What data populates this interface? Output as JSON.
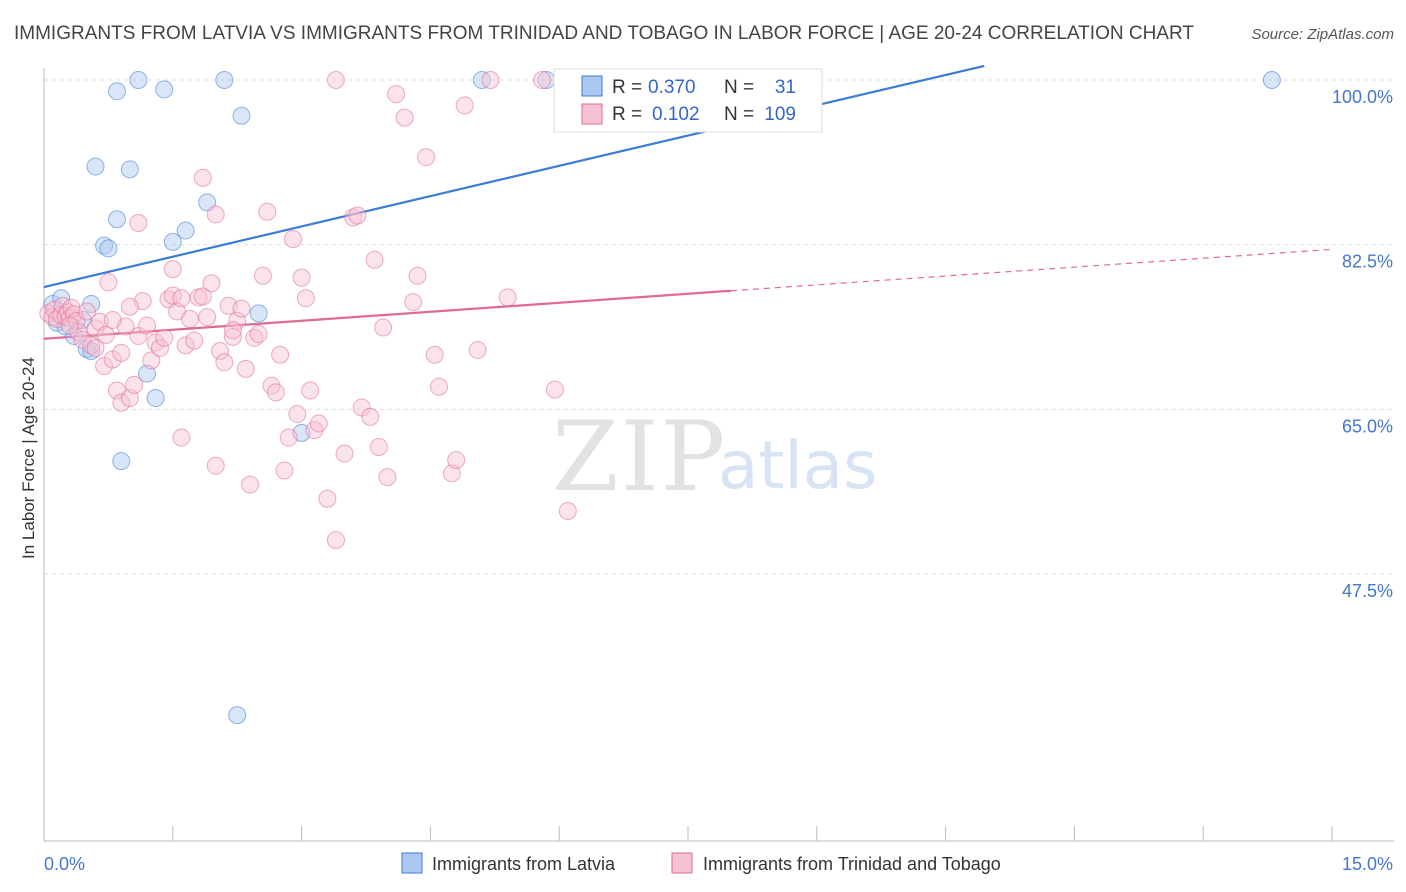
{
  "chart_data": {
    "type": "scatter",
    "title": "IMMIGRANTS FROM LATVIA VS IMMIGRANTS FROM TRINIDAD AND TOBAGO IN LABOR FORCE | AGE 20-24 CORRELATION CHART",
    "source": "Source: ZipAtlas.com",
    "xlabel": "",
    "ylabel": "In Labor Force | Age 20-24",
    "xlim": [
      0,
      15
    ],
    "ylim": [
      31.2,
      101.5
    ],
    "x_tick_labels": [
      "0.0%",
      "15.0%"
    ],
    "y_ticks": [
      {
        "value": 100.0,
        "label": "100.0%"
      },
      {
        "value": 82.5,
        "label": "82.5%"
      },
      {
        "value": 65.0,
        "label": "65.0%"
      },
      {
        "value": 47.5,
        "label": "47.5%"
      }
    ],
    "grid": true,
    "legend_position": "bottom",
    "watermark": {
      "zip": "ZIP",
      "atlas": "atlas"
    },
    "stats": [
      {
        "r_label": "R =",
        "r_value": "0.370",
        "n_label": "N =",
        "n_value": "31"
      },
      {
        "r_label": "R =",
        "r_value": "0.102",
        "n_label": "N =",
        "n_value": "109"
      }
    ],
    "series": [
      {
        "name": "Immigrants from Latvia",
        "color": "#3a7bd5",
        "fill": "#aac8f0",
        "trend": {
          "x0": 0,
          "y0": 78.0,
          "x1": 10.95,
          "y1": 101.5
        },
        "points": [
          [
            0.1,
            76.2
          ],
          [
            0.2,
            76.8
          ],
          [
            0.15,
            74.2
          ],
          [
            0.25,
            73.8
          ],
          [
            0.35,
            72.8
          ],
          [
            0.5,
            71.4
          ],
          [
            0.55,
            76.2
          ],
          [
            0.45,
            74.5
          ],
          [
            0.6,
            90.8
          ],
          [
            0.85,
            98.8
          ],
          [
            1.1,
            100.0
          ],
          [
            1.4,
            99.0
          ],
          [
            2.1,
            100.0
          ],
          [
            2.3,
            96.2
          ],
          [
            0.7,
            82.4
          ],
          [
            0.75,
            82.1
          ],
          [
            0.85,
            85.2
          ],
          [
            1.0,
            90.5
          ],
          [
            1.5,
            82.8
          ],
          [
            1.65,
            84.0
          ],
          [
            1.9,
            87.0
          ],
          [
            2.5,
            75.2
          ],
          [
            1.2,
            68.8
          ],
          [
            1.3,
            66.2
          ],
          [
            0.9,
            59.5
          ],
          [
            3.0,
            62.5
          ],
          [
            5.1,
            100.0
          ],
          [
            5.85,
            100.0
          ],
          [
            14.3,
            100.0
          ],
          [
            2.25,
            32.5
          ],
          [
            0.55,
            71.2
          ]
        ]
      },
      {
        "name": "Immigrants from Trinidad and Tobago",
        "color": "#e06a96",
        "fill": "#f6c1d3",
        "trend": {
          "x0": 0,
          "y0": 72.5,
          "x1": 8.0,
          "y1": 77.6
        },
        "trend_dashed": {
          "x0": 8.0,
          "y0": 77.6,
          "x1": 15.0,
          "y1": 82.0
        },
        "points": [
          [
            0.05,
            75.2
          ],
          [
            0.1,
            74.8
          ],
          [
            0.12,
            75.6
          ],
          [
            0.15,
            74.6
          ],
          [
            0.2,
            75.0
          ],
          [
            0.22,
            76.0
          ],
          [
            0.25,
            74.9
          ],
          [
            0.28,
            75.3
          ],
          [
            0.3,
            74.7
          ],
          [
            0.32,
            75.8
          ],
          [
            0.35,
            75.1
          ],
          [
            0.38,
            74.4
          ],
          [
            0.4,
            73.2
          ],
          [
            0.45,
            72.4
          ],
          [
            0.5,
            75.4
          ],
          [
            0.55,
            71.8
          ],
          [
            0.6,
            73.6
          ],
          [
            0.65,
            74.3
          ],
          [
            0.7,
            69.6
          ],
          [
            0.72,
            72.9
          ],
          [
            0.75,
            78.5
          ],
          [
            0.8,
            70.3
          ],
          [
            0.85,
            67.0
          ],
          [
            0.9,
            65.7
          ],
          [
            0.95,
            73.8
          ],
          [
            1.0,
            66.2
          ],
          [
            1.05,
            67.6
          ],
          [
            1.1,
            72.8
          ],
          [
            1.15,
            76.5
          ],
          [
            1.2,
            73.9
          ],
          [
            1.25,
            70.2
          ],
          [
            1.3,
            72.1
          ],
          [
            1.35,
            71.5
          ],
          [
            1.4,
            72.6
          ],
          [
            1.45,
            76.7
          ],
          [
            1.5,
            77.1
          ],
          [
            1.55,
            75.4
          ],
          [
            1.6,
            62.0
          ],
          [
            1.65,
            71.8
          ],
          [
            1.7,
            74.6
          ],
          [
            1.75,
            72.3
          ],
          [
            1.8,
            76.9
          ],
          [
            1.85,
            77.0
          ],
          [
            1.9,
            74.8
          ],
          [
            1.95,
            78.4
          ],
          [
            2.0,
            59.0
          ],
          [
            2.05,
            71.2
          ],
          [
            2.1,
            70.0
          ],
          [
            2.15,
            76.0
          ],
          [
            2.2,
            72.7
          ],
          [
            2.25,
            74.4
          ],
          [
            2.3,
            75.7
          ],
          [
            2.35,
            69.3
          ],
          [
            2.4,
            57.0
          ],
          [
            2.45,
            72.6
          ],
          [
            2.5,
            73.0
          ],
          [
            2.55,
            79.2
          ],
          [
            2.6,
            86.0
          ],
          [
            2.65,
            67.5
          ],
          [
            2.7,
            66.8
          ],
          [
            2.75,
            70.8
          ],
          [
            2.8,
            58.5
          ],
          [
            2.85,
            62.0
          ],
          [
            2.9,
            83.1
          ],
          [
            2.95,
            64.5
          ],
          [
            3.0,
            79.0
          ],
          [
            3.05,
            76.8
          ],
          [
            3.1,
            67.0
          ],
          [
            3.15,
            62.8
          ],
          [
            3.2,
            63.5
          ],
          [
            3.3,
            55.5
          ],
          [
            3.4,
            51.1
          ],
          [
            3.5,
            60.3
          ],
          [
            3.6,
            85.4
          ],
          [
            3.65,
            85.6
          ],
          [
            3.7,
            65.2
          ],
          [
            3.8,
            64.2
          ],
          [
            3.85,
            80.9
          ],
          [
            3.9,
            61.0
          ],
          [
            3.95,
            73.7
          ],
          [
            4.0,
            57.8
          ],
          [
            4.1,
            98.5
          ],
          [
            4.2,
            96.0
          ],
          [
            4.3,
            76.4
          ],
          [
            4.35,
            79.2
          ],
          [
            4.45,
            91.8
          ],
          [
            4.55,
            70.8
          ],
          [
            4.6,
            67.4
          ],
          [
            4.75,
            58.2
          ],
          [
            4.8,
            59.6
          ],
          [
            4.9,
            97.3
          ],
          [
            5.05,
            71.3
          ],
          [
            5.2,
            100.0
          ],
          [
            5.4,
            76.9
          ],
          [
            5.8,
            100.0
          ],
          [
            6.1,
            54.2
          ],
          [
            5.95,
            67.1
          ],
          [
            1.85,
            89.6
          ],
          [
            1.1,
            84.8
          ],
          [
            1.5,
            79.9
          ],
          [
            0.6,
            71.5
          ],
          [
            0.8,
            74.5
          ],
          [
            2.0,
            85.7
          ],
          [
            1.0,
            75.9
          ],
          [
            0.3,
            73.9
          ],
          [
            1.6,
            76.8
          ],
          [
            2.2,
            73.4
          ],
          [
            0.9,
            71.0
          ],
          [
            3.4,
            100.0
          ]
        ]
      }
    ]
  }
}
